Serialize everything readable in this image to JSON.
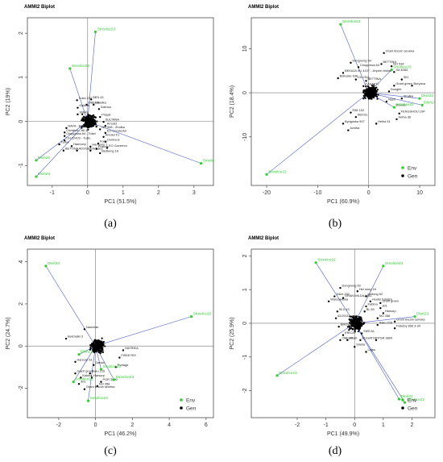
{
  "figure": {
    "captions": [
      "(a)",
      "(b)",
      "(c)",
      "(d)"
    ]
  },
  "colors": {
    "env": "#33cc33",
    "env_line": "#4a5ec7",
    "gen": "#000000",
    "zero_line": "#777777",
    "axis": "#333333"
  },
  "chart_data": [
    {
      "type": "scatter",
      "title": "AMMI2 Biplot",
      "xlabel": "PC1 (51.5%)",
      "ylabel": "PC2 (19%)",
      "xlim": [
        -1.7,
        3.55
      ],
      "ylim": [
        -1.45,
        2.35
      ],
      "xticks": [
        -1,
        0,
        1,
        2,
        3
      ],
      "yticks": [
        -1,
        0,
        1,
        2
      ],
      "legend": "none",
      "env_points": [
        {
          "label": "Strzelce23",
          "x": 0.22,
          "y": 2.03
        },
        {
          "label": "Smolice22",
          "x": -0.5,
          "y": 1.2
        },
        {
          "label": "Smolice23",
          "x": 3.2,
          "y": -0.95
        },
        {
          "label": "Dłoń22",
          "x": -1.45,
          "y": -0.88
        },
        {
          "label": "Dłoń23",
          "x": -1.45,
          "y": -1.25
        }
      ],
      "gen_labels": [
        {
          "label": "Tokei 232",
          "x": -0.3,
          "y": 0.48
        },
        {
          "label": "BEN 43",
          "x": 0.1,
          "y": 0.5
        },
        {
          "label": "OBELIX",
          "x": -0.03,
          "y": 0.38
        },
        {
          "label": "Wasilka",
          "x": 0.17,
          "y": 0.38
        },
        {
          "label": "Kabina",
          "x": -0.28,
          "y": 0.31
        },
        {
          "label": "Salmon",
          "x": 0.32,
          "y": 0.28
        },
        {
          "label": "90643",
          "x": -0.28,
          "y": 0.16
        },
        {
          "label": "Prayat",
          "x": 0.35,
          "y": 0.1
        },
        {
          "label": "SULTANA",
          "x": 0.45,
          "y": -0.01
        },
        {
          "label": "NAYA - Bella",
          "x": -0.6,
          "y": -0.15
        },
        {
          "label": "Amulet",
          "x": 0.5,
          "y": -0.1
        },
        {
          "label": "Christine - Alf 4",
          "x": -0.65,
          "y": -0.25
        },
        {
          "label": "NO 508 - Zhołka",
          "x": 0.35,
          "y": -0.18
        },
        {
          "label": "Chuppewa 64 - Tokei",
          "x": -0.65,
          "y": -0.33
        },
        {
          "label": "EO Conductor",
          "x": 0.5,
          "y": -0.26
        },
        {
          "label": "CH 22429 - Tuzlu",
          "x": -0.65,
          "y": -0.43
        },
        {
          "label": "Amulet F1",
          "x": 0.45,
          "y": -0.35
        },
        {
          "label": "Taifun",
          "x": -0.8,
          "y": -0.52
        },
        {
          "label": "Harmony",
          "x": -0.45,
          "y": -0.56
        },
        {
          "label": "Harmony 1",
          "x": 0.08,
          "y": -0.57
        },
        {
          "label": "Ounheus",
          "x": 0.5,
          "y": -0.46
        },
        {
          "label": "Forro",
          "x": 0.3,
          "y": -0.5
        },
        {
          "label": "BETTINA",
          "x": -0.68,
          "y": -0.66
        },
        {
          "label": "ADOSSA",
          "x": -0.3,
          "y": -0.66
        },
        {
          "label": "Achaea",
          "x": 0.08,
          "y": -0.66
        },
        {
          "label": "Puskas",
          "x": 0.25,
          "y": -0.62
        },
        {
          "label": "EO Governor",
          "x": 0.55,
          "y": -0.6
        },
        {
          "label": "Bedkeng 18",
          "x": 0.35,
          "y": -0.72
        }
      ],
      "legend_entries": []
    },
    {
      "type": "scatter",
      "title": "AMMI2 Biplot",
      "xlabel": "PC1 (60.9%)",
      "ylabel": "PC2 (18.4%)",
      "xlim": [
        -23,
        13
      ],
      "ylim": [
        -21,
        17
      ],
      "xticks": [
        -20,
        -10,
        0,
        10
      ],
      "yticks": [
        -10,
        0,
        10
      ],
      "legend": "bottom-right",
      "env_points": [
        {
          "label": "Strzelce23",
          "x": -5.5,
          "y": 15.5
        },
        {
          "label": "Smolice23",
          "x": 4.5,
          "y": 5.2
        },
        {
          "label": "Smolice22",
          "x": 5,
          "y": -3.3
        },
        {
          "label": "Dłoń22",
          "x": 10,
          "y": -1.3
        },
        {
          "label": "Dłoń23",
          "x": 10.5,
          "y": -2.8
        },
        {
          "label": "Strzelce22",
          "x": -20,
          "y": -18.5
        }
      ],
      "gen_labels": [
        {
          "label": "Grant lincoln seneka",
          "x": 3,
          "y": 9
        },
        {
          "label": "Dongnong 50",
          "x": -3.5,
          "y": 6.8
        },
        {
          "label": "Chuppewa 64",
          "x": -2,
          "y": 5.8
        },
        {
          "label": "BETTINA",
          "x": 2.5,
          "y": 6.5
        },
        {
          "label": "NO 534",
          "x": 4.5,
          "y": 6
        },
        {
          "label": "BEKAJA VU 4107 - Jinpein bishel",
          "x": -5,
          "y": 4.5
        },
        {
          "label": "SA 4584",
          "x": 5,
          "y": 4.7
        },
        {
          "label": "Beltuske 636",
          "x": -6,
          "y": 3.3
        },
        {
          "label": "CH 2511",
          "x": -2.5,
          "y": 3
        },
        {
          "label": "BETTINA",
          "x": -0.5,
          "y": 2.7
        },
        {
          "label": "CANATTI",
          "x": -1,
          "y": 1.5
        },
        {
          "label": "301",
          "x": 6.5,
          "y": 3
        },
        {
          "label": "Grant green",
          "x": 5,
          "y": 1.6
        },
        {
          "label": "Buryana",
          "x": 8.5,
          "y": 1.6
        },
        {
          "label": "Dongfei",
          "x": 4,
          "y": 0.3
        },
        {
          "label": "Strafka",
          "x": 6.5,
          "y": -1.3
        },
        {
          "label": "Nash",
          "x": 3.5,
          "y": -2
        },
        {
          "label": "Wonder",
          "x": 5,
          "y": -3.3
        },
        {
          "label": "E58 152",
          "x": -3.5,
          "y": -4.5
        },
        {
          "label": "802011",
          "x": -2.5,
          "y": -5.5
        },
        {
          "label": "FENGSHOU 10P",
          "x": 6,
          "y": -4.7
        },
        {
          "label": "Helha 36",
          "x": 5.5,
          "y": -6
        },
        {
          "label": "Bydgoska 957",
          "x": -5,
          "y": -7
        },
        {
          "label": "Helha 51",
          "x": 1.5,
          "y": -7
        },
        {
          "label": "Achiba",
          "x": -4,
          "y": -8.5
        }
      ],
      "legend_entries": [
        "Env",
        "Gen"
      ]
    },
    {
      "type": "scatter",
      "title": "AMMI2 Biplot",
      "xlabel": "PC1 (46.2%)",
      "ylabel": "PC2 (24.7%)",
      "xlim": [
        -3.7,
        6.4
      ],
      "ylim": [
        -3.4,
        4.6
      ],
      "xticks": [
        -2,
        0,
        2,
        4,
        6
      ],
      "yticks": [
        -2,
        0,
        2,
        4
      ],
      "legend": "bottom-right",
      "env_points": [
        {
          "label": "Dłoń23",
          "x": -2.7,
          "y": 3.8
        },
        {
          "label": "Strzelce22",
          "x": 5.2,
          "y": 1.4
        },
        {
          "label": "Dłoń22",
          "x": -0.9,
          "y": -0.4
        },
        {
          "label": "Smolice23",
          "x": 0.3,
          "y": -1.1
        },
        {
          "label": "Smolice22",
          "x": -1.2,
          "y": -1.7
        },
        {
          "label": "Strzelce23",
          "x": 1.0,
          "y": -1.6
        },
        {
          "label": "Smolice22",
          "x": -0.4,
          "y": -2.6
        }
      ],
      "gen_labels": [
        {
          "label": "Nanchab",
          "x": -0.6,
          "y": 0.8
        },
        {
          "label": "Bełchatki 3",
          "x": -1.6,
          "y": 0.35
        },
        {
          "label": "Harsorp 61",
          "x": -1.1,
          "y": -0.75
        },
        {
          "label": "HAYRIKA",
          "x": 1.5,
          "y": -0.2
        },
        {
          "label": "FISKEYBY",
          "x": 1.3,
          "y": -0.55
        },
        {
          "label": "Portage",
          "x": 1.1,
          "y": -1.0
        },
        {
          "label": "Danka",
          "x": -0.1,
          "y": -0.9
        },
        {
          "label": "Gaert green",
          "x": -1.1,
          "y": -1.3
        },
        {
          "label": "Saku 216",
          "x": -0.3,
          "y": -1.3
        },
        {
          "label": "Kabina",
          "x": -0.8,
          "y": -1.5
        },
        {
          "label": "Harsorp",
          "x": -0.2,
          "y": -1.5
        },
        {
          "label": "PGR 3890",
          "x": 0.3,
          "y": -1.7
        },
        {
          "label": "301",
          "x": -0.9,
          "y": -1.8
        },
        {
          "label": "NO 358",
          "x": 0.1,
          "y": -1.9
        },
        {
          "label": "Grant lincoln seneka",
          "x": -0.6,
          "y": -2.05
        }
      ],
      "legend_entries": [
        "Env",
        "Gen"
      ]
    },
    {
      "type": "scatter",
      "title": "AMMI2 Biplot",
      "xlabel": "PC1 (49.9%)",
      "ylabel": "PC2 (25.9%)",
      "xlim": [
        -3.6,
        2.8
      ],
      "ylim": [
        -2.8,
        2.2
      ],
      "xticks": [
        -2,
        -1,
        0,
        1,
        2
      ],
      "yticks": [
        -2,
        -1,
        0,
        1,
        2
      ],
      "legend": "bottom-right",
      "env_points": [
        {
          "label": "Strzelce22",
          "x": -1.35,
          "y": 1.8
        },
        {
          "label": "Smolice23",
          "x": 1.0,
          "y": 1.7
        },
        {
          "label": "Dłoń23",
          "x": 2.1,
          "y": 0.2
        },
        {
          "label": "Strzelce23",
          "x": -2.7,
          "y": -1.55
        },
        {
          "label": "Dłoń22",
          "x": 1.55,
          "y": -2.25
        },
        {
          "label": "Smolice22",
          "x": 1.75,
          "y": -2.35
        }
      ],
      "gen_labels": [
        {
          "label": "Dongnong 50",
          "x": -0.5,
          "y": 1.05
        },
        {
          "label": "Hei nong 18",
          "x": 0.1,
          "y": 0.95
        },
        {
          "label": "Tokei 232",
          "x": -0.7,
          "y": 0.8
        },
        {
          "label": "GRAN MILDAJ 641",
          "x": -0.4,
          "y": 0.75
        },
        {
          "label": "Heilong 62",
          "x": 0.4,
          "y": 0.8
        },
        {
          "label": "Warszawska",
          "x": -0.9,
          "y": 0.65
        },
        {
          "label": "Houtei habishi",
          "x": 0.55,
          "y": 0.65
        },
        {
          "label": "Grant green",
          "x": 0.9,
          "y": 0.6
        },
        {
          "label": "Kabina",
          "x": 0.4,
          "y": 0.5
        },
        {
          "label": "301",
          "x": 0.9,
          "y": 0.45
        },
        {
          "label": "90 k 43",
          "x": -0.6,
          "y": 0.35
        },
        {
          "label": "BL 60",
          "x": 0.35,
          "y": 0.35
        },
        {
          "label": "Harsorp",
          "x": 1.0,
          "y": 0.3
        },
        {
          "label": "62/2011",
          "x": -0.65,
          "y": 0.15
        },
        {
          "label": "NO 358",
          "x": 0.8,
          "y": 0.15
        },
        {
          "label": "Grant lincoln seneka",
          "x": 1.4,
          "y": 0.05
        },
        {
          "label": "Bełchatki 3",
          "x": -0.55,
          "y": -0.1
        },
        {
          "label": "Saku 216",
          "x": 0.8,
          "y": -0.05
        },
        {
          "label": "Fiskeby 896 3-34",
          "x": 1.4,
          "y": -0.15
        },
        {
          "label": "ERICA",
          "x": -0.4,
          "y": -0.35
        },
        {
          "label": "SIEEJA",
          "x": 0.25,
          "y": -0.3
        },
        {
          "label": "OBELIX",
          "x": -0.5,
          "y": -0.5
        },
        {
          "label": "Amalt",
          "x": -0.25,
          "y": -0.5
        },
        {
          "label": "ALIGATOR",
          "x": 0.2,
          "y": -0.5
        },
        {
          "label": "PGR 3890",
          "x": 0.75,
          "y": -0.5
        },
        {
          "label": "Sirelia",
          "x": 0.0,
          "y": -0.7
        },
        {
          "label": "Lajka",
          "x": 0.4,
          "y": -0.85
        }
      ],
      "legend_entries": [
        "Env",
        "Gen"
      ]
    }
  ]
}
